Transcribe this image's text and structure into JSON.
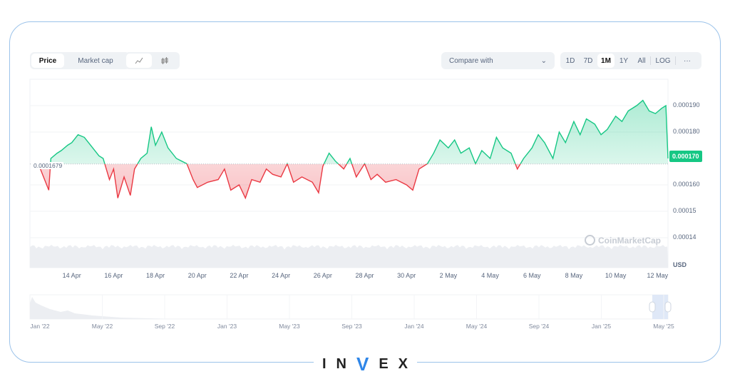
{
  "toolbar": {
    "price": "Price",
    "market_cap": "Market cap",
    "compare": "Compare with",
    "ranges": [
      "1D",
      "7D",
      "1M",
      "1Y",
      "All"
    ],
    "log": "LOG",
    "more": "···",
    "active_range": "1M"
  },
  "colors": {
    "up": "#16c784",
    "down": "#ea3943"
  },
  "chart_data": {
    "type": "line",
    "title": "",
    "xlabel": "",
    "ylabel": "USD",
    "baseline": 0.0001679,
    "baseline_label": "0.0001679",
    "current_price_label": "0.000170",
    "ylim": [
      0.000134,
      0.000197
    ],
    "y_ticks": [
      "0.000190",
      "0.000180",
      "0.000160",
      "0.00015",
      "0.00014"
    ],
    "y_tick_values": [
      0.00019,
      0.00018,
      0.00016,
      0.00015,
      0.00014
    ],
    "x_ticks": [
      "14 Apr",
      "16 Apr",
      "18 Apr",
      "20 Apr",
      "22 Apr",
      "24 Apr",
      "26 Apr",
      "28 Apr",
      "30 Apr",
      "2 May",
      "4 May",
      "6 May",
      "8 May",
      "10 May",
      "12 May"
    ],
    "x_note": "x = days since 12 Apr, y = price x1e-4 USD",
    "points": [
      [
        0.4,
        1.68
      ],
      [
        0.6,
        1.64
      ],
      [
        0.9,
        1.58
      ],
      [
        1.0,
        1.7
      ],
      [
        1.3,
        1.72
      ],
      [
        1.5,
        1.73
      ],
      [
        1.8,
        1.75
      ],
      [
        2.0,
        1.76
      ],
      [
        2.3,
        1.79
      ],
      [
        2.6,
        1.78
      ],
      [
        2.8,
        1.76
      ],
      [
        3.0,
        1.74
      ],
      [
        3.3,
        1.71
      ],
      [
        3.5,
        1.7
      ],
      [
        3.8,
        1.62
      ],
      [
        4.0,
        1.66
      ],
      [
        4.2,
        1.55
      ],
      [
        4.5,
        1.63
      ],
      [
        4.8,
        1.56
      ],
      [
        5.0,
        1.66
      ],
      [
        5.3,
        1.7
      ],
      [
        5.6,
        1.72
      ],
      [
        5.8,
        1.82
      ],
      [
        6.0,
        1.75
      ],
      [
        6.3,
        1.8
      ],
      [
        6.6,
        1.74
      ],
      [
        7.0,
        1.7
      ],
      [
        7.5,
        1.68
      ],
      [
        7.8,
        1.62
      ],
      [
        8.0,
        1.59
      ],
      [
        8.5,
        1.61
      ],
      [
        9.0,
        1.62
      ],
      [
        9.3,
        1.66
      ],
      [
        9.6,
        1.58
      ],
      [
        10.0,
        1.6
      ],
      [
        10.3,
        1.55
      ],
      [
        10.6,
        1.62
      ],
      [
        11.0,
        1.61
      ],
      [
        11.3,
        1.66
      ],
      [
        11.6,
        1.64
      ],
      [
        12.0,
        1.63
      ],
      [
        12.3,
        1.68
      ],
      [
        12.6,
        1.61
      ],
      [
        13.0,
        1.63
      ],
      [
        13.5,
        1.61
      ],
      [
        13.8,
        1.57
      ],
      [
        14.0,
        1.67
      ],
      [
        14.3,
        1.72
      ],
      [
        14.6,
        1.69
      ],
      [
        15.0,
        1.66
      ],
      [
        15.3,
        1.7
      ],
      [
        15.6,
        1.63
      ],
      [
        16.0,
        1.68
      ],
      [
        16.3,
        1.62
      ],
      [
        16.6,
        1.64
      ],
      [
        17.0,
        1.61
      ],
      [
        17.5,
        1.62
      ],
      [
        18.0,
        1.6
      ],
      [
        18.3,
        1.58
      ],
      [
        18.6,
        1.66
      ],
      [
        19.0,
        1.68
      ],
      [
        19.3,
        1.72
      ],
      [
        19.6,
        1.77
      ],
      [
        20.0,
        1.74
      ],
      [
        20.3,
        1.77
      ],
      [
        20.6,
        1.72
      ],
      [
        21.0,
        1.74
      ],
      [
        21.3,
        1.68
      ],
      [
        21.6,
        1.73
      ],
      [
        22.0,
        1.7
      ],
      [
        22.3,
        1.78
      ],
      [
        22.6,
        1.74
      ],
      [
        23.0,
        1.72
      ],
      [
        23.3,
        1.66
      ],
      [
        23.6,
        1.7
      ],
      [
        24.0,
        1.74
      ],
      [
        24.3,
        1.79
      ],
      [
        24.6,
        1.76
      ],
      [
        25.0,
        1.7
      ],
      [
        25.3,
        1.8
      ],
      [
        25.6,
        1.76
      ],
      [
        26.0,
        1.84
      ],
      [
        26.3,
        1.79
      ],
      [
        26.6,
        1.85
      ],
      [
        27.0,
        1.83
      ],
      [
        27.3,
        1.79
      ],
      [
        27.6,
        1.81
      ],
      [
        28.0,
        1.86
      ],
      [
        28.3,
        1.84
      ],
      [
        28.6,
        1.88
      ],
      [
        29.0,
        1.9
      ],
      [
        29.3,
        1.92
      ],
      [
        29.6,
        1.88
      ],
      [
        29.9,
        1.87
      ],
      [
        30.2,
        1.89
      ],
      [
        30.4,
        1.9
      ],
      [
        30.5,
        1.7
      ]
    ]
  },
  "navigator": {
    "labels": [
      "Jan '22",
      "May '22",
      "Sep '22",
      "Jan '23",
      "May '23",
      "Sep '23",
      "Jan '24",
      "May '24",
      "Sep '24",
      "Jan '25",
      "May '25"
    ]
  },
  "watermark": "CoinMarketCap",
  "logo": {
    "letters": [
      "I",
      "N",
      "V",
      "E",
      "X"
    ]
  }
}
